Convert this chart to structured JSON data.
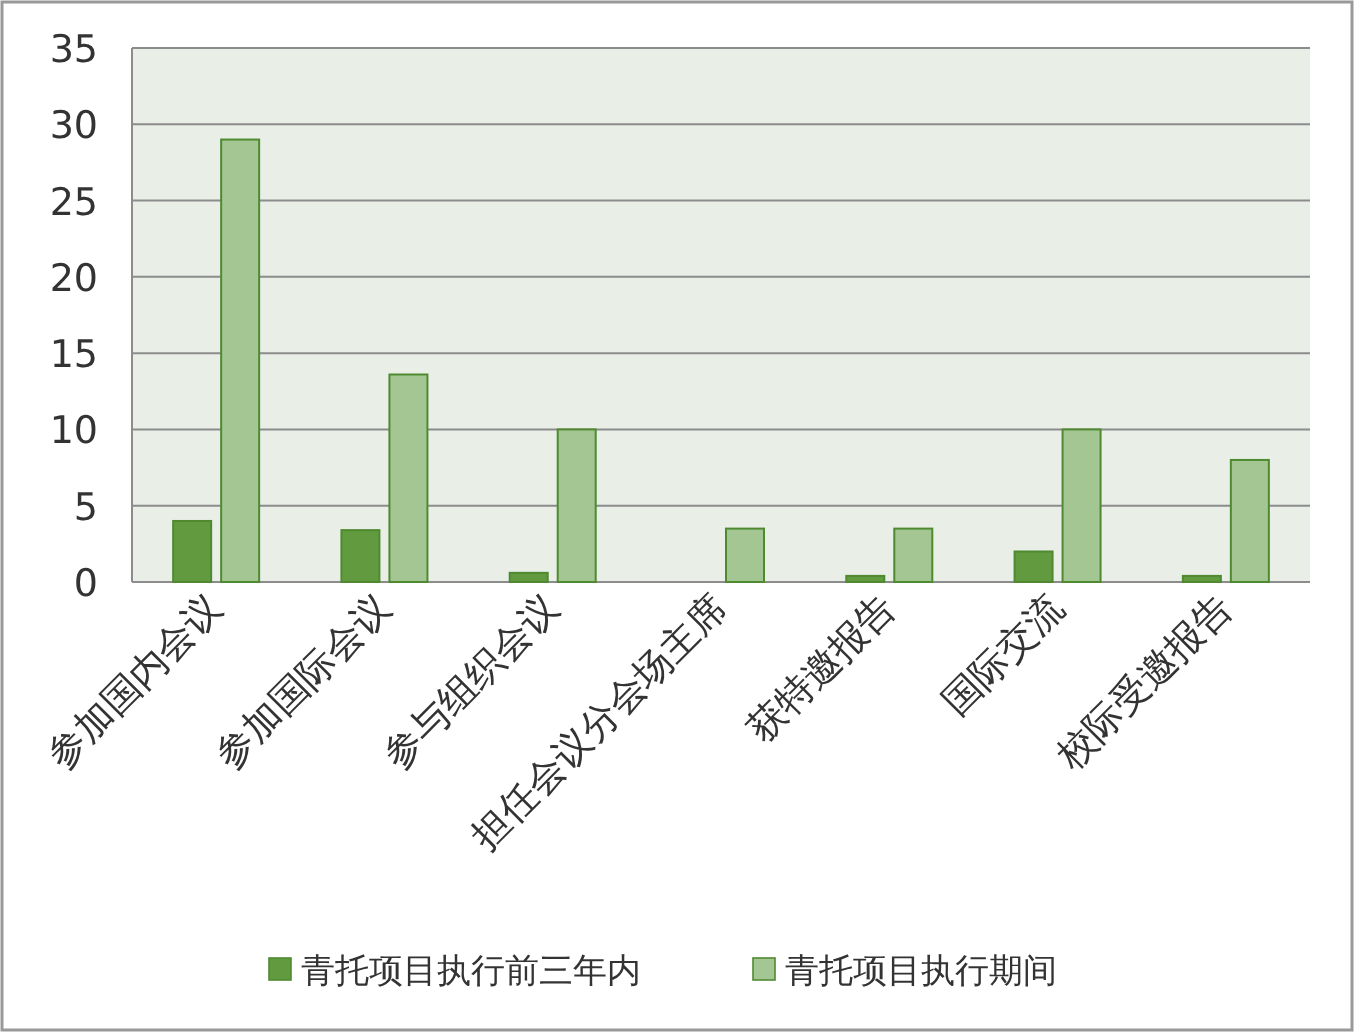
{
  "chart_data": {
    "type": "bar",
    "categories": [
      "参加国内会议",
      "参加国际会议",
      "参与组织会议",
      "担任会议分会场主席",
      "获特邀报告",
      "国际交流",
      "校际受邀报告"
    ],
    "series": [
      {
        "name": "青托项目执行前三年内",
        "color": "#629b3f",
        "values": [
          4,
          3.4,
          0.6,
          0,
          0.4,
          2,
          0.4
        ]
      },
      {
        "name": "青托项目执行期间",
        "color": "#a3c692",
        "values": [
          29,
          13.6,
          10,
          3.5,
          3.5,
          10,
          8
        ]
      }
    ],
    "ylim": [
      0,
      35
    ],
    "yticks": [
      0,
      5,
      10,
      15,
      20,
      25,
      30,
      35
    ],
    "grid": "y",
    "legend": "bottom"
  }
}
